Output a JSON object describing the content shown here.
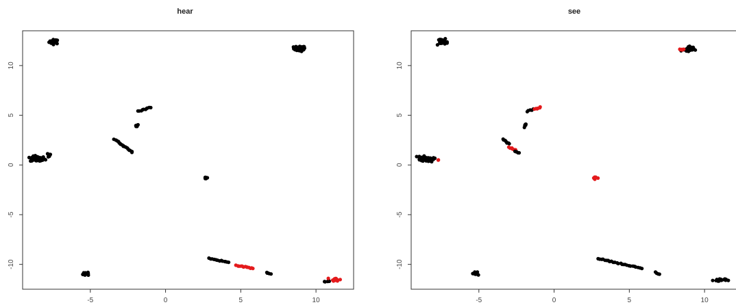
{
  "chart_data": [
    {
      "type": "scatter",
      "title": "hear",
      "xlabel": "",
      "ylabel": "",
      "xlim": [
        -9.5,
        12.5
      ],
      "ylim": [
        -12.5,
        13.5
      ],
      "xticks": [
        -5,
        0,
        5,
        10
      ],
      "yticks": [
        -10,
        -5,
        0,
        5,
        10
      ],
      "xtick_labels": [
        "-5",
        "0",
        "5",
        "10"
      ],
      "ytick_labels": [
        "-10",
        "-5",
        "0",
        "5",
        "10"
      ],
      "grid": false,
      "colors": {
        "default": "#000000",
        "highlight": "#e41a1c"
      },
      "clusters": [
        {
          "x": -7.4,
          "y": 12.4,
          "sx": 0.3,
          "sy": 0.2,
          "n": 34,
          "color": "default"
        },
        {
          "x": 8.9,
          "y": 11.7,
          "sx": 0.35,
          "sy": 0.25,
          "n": 38,
          "color": "default"
        },
        {
          "x": -8.5,
          "y": 0.6,
          "sx": 0.45,
          "sy": 0.25,
          "n": 60,
          "color": "default"
        },
        {
          "x": -7.8,
          "y": 1.0,
          "sx": 0.2,
          "sy": 0.2,
          "n": 8,
          "color": "default"
        },
        {
          "x": -1.9,
          "y": 4.0,
          "sx": 0.12,
          "sy": 0.2,
          "n": 6,
          "color": "default"
        },
        {
          "x": 2.7,
          "y": -1.3,
          "sx": 0.12,
          "sy": 0.1,
          "n": 10,
          "color": "default"
        },
        {
          "x": -5.2,
          "y": -10.9,
          "sx": 0.25,
          "sy": 0.25,
          "n": 10,
          "color": "default"
        },
        {
          "x": 10.6,
          "y": -11.7,
          "sx": 0.3,
          "sy": 0.1,
          "n": 6,
          "color": "default"
        },
        {
          "x": 11.3,
          "y": -11.5,
          "sx": 0.25,
          "sy": 0.15,
          "n": 14,
          "color": "highlight"
        }
      ],
      "segments": [
        {
          "x0": -1.8,
          "y0": 5.4,
          "x1": -1.0,
          "y1": 5.8,
          "n": 10,
          "color": "default"
        },
        {
          "x0": -3.4,
          "y0": 2.6,
          "x1": -2.2,
          "y1": 1.3,
          "n": 20,
          "color": "default"
        },
        {
          "x0": 2.9,
          "y0": -9.4,
          "x1": 4.2,
          "y1": -9.8,
          "n": 14,
          "color": "default"
        },
        {
          "x0": 4.7,
          "y0": -10.1,
          "x1": 5.8,
          "y1": -10.4,
          "n": 14,
          "color": "highlight"
        },
        {
          "x0": 6.7,
          "y0": -10.8,
          "x1": 7.0,
          "y1": -11.0,
          "n": 5,
          "color": "default"
        }
      ]
    },
    {
      "type": "scatter",
      "title": "see",
      "xlabel": "",
      "ylabel": "",
      "xlim": [
        -9.5,
        12.5
      ],
      "ylim": [
        -12.5,
        13.5
      ],
      "xticks": [
        -5,
        0,
        5,
        10
      ],
      "yticks": [
        -10,
        -5,
        0,
        5,
        10
      ],
      "xtick_labels": [
        "-5",
        "0",
        "5",
        "10"
      ],
      "ytick_labels": [
        "-10",
        "-5",
        "0",
        "5",
        "10"
      ],
      "grid": false,
      "colors": {
        "default": "#000000",
        "highlight": "#e41a1c"
      },
      "clusters": [
        {
          "x": -7.4,
          "y": 12.4,
          "sx": 0.3,
          "sy": 0.2,
          "n": 34,
          "color": "default"
        },
        {
          "x": 9.0,
          "y": 11.7,
          "sx": 0.3,
          "sy": 0.25,
          "n": 34,
          "color": "default"
        },
        {
          "x": 8.5,
          "y": 11.6,
          "sx": 0.1,
          "sy": 0.05,
          "n": 5,
          "color": "highlight"
        },
        {
          "x": -8.5,
          "y": 0.6,
          "sx": 0.45,
          "sy": 0.25,
          "n": 60,
          "color": "default"
        },
        {
          "x": -7.7,
          "y": 0.5,
          "sx": 0.05,
          "sy": 0.05,
          "n": 2,
          "color": "highlight"
        },
        {
          "x": -1.9,
          "y": 4.0,
          "sx": 0.12,
          "sy": 0.2,
          "n": 6,
          "color": "default"
        },
        {
          "x": 2.7,
          "y": -1.3,
          "sx": 0.12,
          "sy": 0.12,
          "n": 10,
          "color": "highlight"
        },
        {
          "x": -5.2,
          "y": -10.9,
          "sx": 0.25,
          "sy": 0.25,
          "n": 10,
          "color": "default"
        },
        {
          "x": 11.0,
          "y": -11.6,
          "sx": 0.5,
          "sy": 0.15,
          "n": 16,
          "color": "default"
        }
      ],
      "segments": [
        {
          "x0": -1.8,
          "y0": 5.4,
          "x1": -1.4,
          "y1": 5.6,
          "n": 5,
          "color": "default"
        },
        {
          "x0": -1.3,
          "y0": 5.6,
          "x1": -0.9,
          "y1": 5.8,
          "n": 6,
          "color": "highlight"
        },
        {
          "x0": -3.4,
          "y0": 2.6,
          "x1": -3.0,
          "y1": 2.1,
          "n": 8,
          "color": "default"
        },
        {
          "x0": -3.0,
          "y0": 1.8,
          "x1": -2.6,
          "y1": 1.5,
          "n": 6,
          "color": "highlight"
        },
        {
          "x0": -2.6,
          "y0": 1.4,
          "x1": -2.3,
          "y1": 1.2,
          "n": 5,
          "color": "default"
        },
        {
          "x0": 2.9,
          "y0": -9.4,
          "x1": 5.8,
          "y1": -10.4,
          "n": 26,
          "color": "default"
        },
        {
          "x0": 6.7,
          "y0": -10.8,
          "x1": 7.0,
          "y1": -11.0,
          "n": 5,
          "color": "default"
        }
      ]
    }
  ]
}
